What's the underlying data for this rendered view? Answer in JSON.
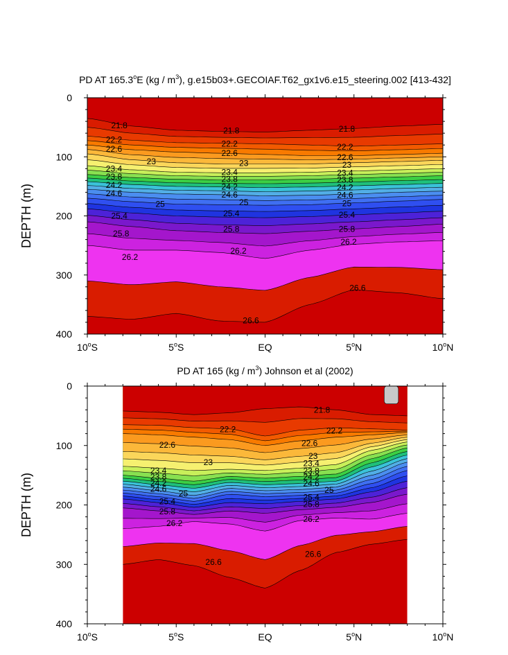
{
  "colors": {
    "levels_palette": [
      "#cc0000",
      "#d91c00",
      "#e83a00",
      "#f25a00",
      "#f87a00",
      "#fb9a1f",
      "#fbb83a",
      "#fbd65a",
      "#f6f070",
      "#c8ef5a",
      "#88e050",
      "#3ccf44",
      "#1fc07a",
      "#22c8b4",
      "#3ac2d8",
      "#52aee6",
      "#4b8ef0",
      "#3f6ff2",
      "#2f4ff0",
      "#1f34e0",
      "#4d22d8",
      "#7a18cc",
      "#a416cc",
      "#cc22e0",
      "#ee33f0",
      "#ff5cff"
    ],
    "missing": "#c8c8c8",
    "contour_line": "#000000"
  },
  "chart_data": [
    {
      "type": "contour",
      "title_parts": [
        "PD AT 165.3",
        "o",
        "E (kg / m",
        "3",
        "), g.e15b03+.GECOIAF.T62_gx1v6.e15_steering.002 [413-432]"
      ],
      "ylabel": "DEPTH (m)",
      "xlabel": "",
      "xlim": [
        -10,
        10
      ],
      "ylim": [
        0,
        400
      ],
      "y_inverted": true,
      "x_ticks": [
        {
          "value": -10,
          "num": "10",
          "sup": "o",
          "hem": "S"
        },
        {
          "value": -5,
          "num": "5",
          "sup": "o",
          "hem": "S"
        },
        {
          "value": 0,
          "num": "EQ",
          "sup": "",
          "hem": ""
        },
        {
          "value": 5,
          "num": "5",
          "sup": "o",
          "hem": "N"
        },
        {
          "value": 10,
          "num": "10",
          "sup": "o",
          "hem": "N"
        }
      ],
      "y_ticks": [
        0,
        100,
        200,
        300,
        400
      ],
      "data_extent": [
        -10,
        10
      ],
      "contour_interval": 0.2,
      "labeled_levels": [
        21.8,
        22.2,
        22.6,
        23,
        23.4,
        23.8,
        24.2,
        24.6,
        25,
        25.4,
        25.8,
        26.2,
        26.6
      ],
      "level_depth_profile": {
        "x": [
          -10,
          -7.5,
          -5,
          -2.5,
          0,
          2.5,
          5,
          7.5,
          10
        ],
        "levels": [
          {
            "level": 21.8,
            "depths": [
              35,
              48,
              55,
              57,
              58,
              55,
              52,
              48,
              45
            ]
          },
          {
            "level": 22.2,
            "depths": [
              65,
              72,
              76,
              77,
              78,
              80,
              82,
              80,
              78
            ]
          },
          {
            "level": 22.6,
            "depths": [
              80,
              88,
              92,
              94,
              96,
              98,
              98,
              96,
              94
            ]
          },
          {
            "level": 23,
            "depths": [
              95,
              105,
              110,
              112,
              112,
              112,
              110,
              108,
              106
            ]
          },
          {
            "level": 23.4,
            "depths": [
              115,
              122,
              126,
              127,
              127,
              126,
              124,
              122,
              120
            ]
          },
          {
            "level": 23.8,
            "depths": [
              130,
              135,
              138,
              139,
              139,
              138,
              136,
              134,
              132
            ]
          },
          {
            "level": 24.2,
            "depths": [
              142,
              147,
              150,
              151,
              152,
              151,
              149,
              147,
              145
            ]
          },
          {
            "level": 24.6,
            "depths": [
              155,
              160,
              163,
              164,
              166,
              165,
              163,
              160,
              158
            ]
          },
          {
            "level": 25,
            "depths": [
              170,
              176,
              180,
              181,
              182,
              181,
              178,
              175,
              172
            ]
          },
          {
            "level": 25.4,
            "depths": [
              188,
              195,
              200,
              202,
              203,
              201,
              198,
              195,
              192
            ]
          },
          {
            "level": 25.8,
            "depths": [
              210,
              218,
              225,
              228,
              230,
              226,
              222,
              218,
              214
            ]
          },
          {
            "level": 26.2,
            "depths": [
              250,
              258,
              258,
              262,
              272,
              258,
              248,
              244,
              242
            ]
          },
          {
            "level": 26.6,
            "depths": [
              370,
              375,
              365,
              378,
              380,
              350,
              325,
              330,
              340
            ]
          }
        ]
      },
      "line_labels": [
        {
          "text": "21.8",
          "x": -8.2,
          "y": 47
        },
        {
          "text": "22.2",
          "x": -8.5,
          "y": 71
        },
        {
          "text": "22.6",
          "x": -8.5,
          "y": 87
        },
        {
          "text": "23",
          "x": -6.4,
          "y": 108
        },
        {
          "text": "23.4",
          "x": -8.5,
          "y": 120
        },
        {
          "text": "23.8",
          "x": -8.5,
          "y": 134
        },
        {
          "text": "24.2",
          "x": -8.5,
          "y": 148
        },
        {
          "text": "24.6",
          "x": -8.5,
          "y": 162
        },
        {
          "text": "25",
          "x": -5.9,
          "y": 180
        },
        {
          "text": "25.4",
          "x": -8.2,
          "y": 200
        },
        {
          "text": "25.8",
          "x": -8.1,
          "y": 230
        },
        {
          "text": "26.2",
          "x": -7.6,
          "y": 270
        },
        {
          "text": "21.8",
          "x": -1.9,
          "y": 56
        },
        {
          "text": "22.2",
          "x": -2.0,
          "y": 78
        },
        {
          "text": "22.6",
          "x": -2.0,
          "y": 94
        },
        {
          "text": "23",
          "x": -1.2,
          "y": 111
        },
        {
          "text": "23.4",
          "x": -2.0,
          "y": 126
        },
        {
          "text": "23.8",
          "x": -2.0,
          "y": 138
        },
        {
          "text": "24.2",
          "x": -2.0,
          "y": 151
        },
        {
          "text": "24.6",
          "x": -2.0,
          "y": 164
        },
        {
          "text": "25",
          "x": -1.2,
          "y": 177
        },
        {
          "text": "25.4",
          "x": -1.9,
          "y": 196
        },
        {
          "text": "25.8",
          "x": -1.9,
          "y": 222
        },
        {
          "text": "26.2",
          "x": -1.5,
          "y": 259
        },
        {
          "text": "26.6",
          "x": -0.8,
          "y": 377
        },
        {
          "text": "21.8",
          "x": 4.6,
          "y": 53
        },
        {
          "text": "22.2",
          "x": 4.5,
          "y": 83
        },
        {
          "text": "22.6",
          "x": 4.5,
          "y": 101
        },
        {
          "text": "23",
          "x": 4.6,
          "y": 114
        },
        {
          "text": "23.4",
          "x": 4.5,
          "y": 127
        },
        {
          "text": "23.8",
          "x": 4.5,
          "y": 139
        },
        {
          "text": "24.2",
          "x": 4.5,
          "y": 152
        },
        {
          "text": "24.6",
          "x": 4.5,
          "y": 165
        },
        {
          "text": "25",
          "x": 4.6,
          "y": 179
        },
        {
          "text": "25.4",
          "x": 4.6,
          "y": 198
        },
        {
          "text": "25.8",
          "x": 4.6,
          "y": 222
        },
        {
          "text": "26.2",
          "x": 4.7,
          "y": 244
        },
        {
          "text": "26.6",
          "x": 5.2,
          "y": 322
        }
      ]
    },
    {
      "type": "contour",
      "title_parts": [
        "PD AT 165 (kg / m",
        "3",
        ") Johnson et al (2002)"
      ],
      "ylabel": "DEPTH (m)",
      "xlabel": "",
      "xlim": [
        -10,
        10
      ],
      "ylim": [
        0,
        400
      ],
      "y_inverted": true,
      "x_ticks": [
        {
          "value": -10,
          "num": "10",
          "sup": "o",
          "hem": "S"
        },
        {
          "value": -5,
          "num": "5",
          "sup": "o",
          "hem": "S"
        },
        {
          "value": 0,
          "num": "EQ",
          "sup": "",
          "hem": ""
        },
        {
          "value": 5,
          "num": "5",
          "sup": "o",
          "hem": "N"
        },
        {
          "value": 10,
          "num": "10",
          "sup": "o",
          "hem": "N"
        }
      ],
      "y_ticks": [
        0,
        100,
        200,
        300,
        400
      ],
      "data_extent": [
        -8,
        8
      ],
      "contour_interval": 0.2,
      "labeled_levels": [
        21.8,
        22.2,
        22.6,
        23,
        23.4,
        23.8,
        24.2,
        24.6,
        25,
        25.4,
        25.8,
        26.2,
        26.6
      ],
      "level_depth_profile": {
        "x": [
          -8,
          -6,
          -4,
          -2,
          0,
          2,
          4,
          6,
          8
        ],
        "levels": [
          {
            "level": 21.8,
            "depths": [
              42,
              44,
              48,
              45,
              38,
              35,
              40,
              48,
              50
            ]
          },
          {
            "level": 22.2,
            "depths": [
              65,
              66,
              70,
              72,
              84,
              74,
              70,
              72,
              74
            ]
          },
          {
            "level": 22.6,
            "depths": [
              80,
              82,
              86,
              90,
              100,
              92,
              86,
              82,
              78
            ]
          },
          {
            "level": 23,
            "depths": [
              110,
              112,
              116,
              118,
              124,
              118,
              112,
              96,
              86
            ]
          },
          {
            "level": 23.4,
            "depths": [
              135,
              138,
              142,
              140,
              142,
              138,
              132,
              108,
              94
            ]
          },
          {
            "level": 23.8,
            "depths": [
              150,
              155,
              160,
              152,
              155,
              152,
              148,
              122,
              104
            ]
          },
          {
            "level": 24.2,
            "depths": [
              160,
              166,
              172,
              162,
              166,
              164,
              160,
              136,
              116
            ]
          },
          {
            "level": 24.6,
            "depths": [
              170,
              176,
              184,
              172,
              176,
              174,
              170,
              150,
              128
            ]
          },
          {
            "level": 25,
            "depths": [
              180,
              186,
              194,
              182,
              186,
              184,
              180,
              164,
              142
            ]
          },
          {
            "level": 25.4,
            "depths": [
              190,
              196,
              204,
              196,
              198,
              194,
              190,
              178,
              160
            ]
          },
          {
            "level": 25.8,
            "depths": [
              205,
              210,
              216,
              210,
              214,
              208,
              204,
              196,
              182
            ]
          },
          {
            "level": 26.2,
            "depths": [
              240,
              236,
              228,
              232,
              244,
              226,
              222,
              224,
              214
            ]
          },
          {
            "level": 26.6,
            "depths": [
              300,
              292,
              302,
              322,
              340,
              310,
              280,
              266,
              258
            ]
          }
        ]
      },
      "missing_patch": {
        "x": [
          6.7,
          7.5
        ],
        "y": [
          0,
          30
        ]
      },
      "line_labels": [
        {
          "text": "21.8",
          "x": 3.2,
          "y": 40
        },
        {
          "text": "22.2",
          "x": -2.1,
          "y": 73
        },
        {
          "text": "22.2",
          "x": 3.9,
          "y": 75
        },
        {
          "text": "22.6",
          "x": -5.5,
          "y": 99
        },
        {
          "text": "22.6",
          "x": 2.5,
          "y": 96
        },
        {
          "text": "23",
          "x": -3.2,
          "y": 128
        },
        {
          "text": "23.4",
          "x": -6.0,
          "y": 142
        },
        {
          "text": "23.8",
          "x": -6.0,
          "y": 153
        },
        {
          "text": "24.2",
          "x": -6.0,
          "y": 163
        },
        {
          "text": "24.6",
          "x": -6.0,
          "y": 173
        },
        {
          "text": "25",
          "x": -4.6,
          "y": 181
        },
        {
          "text": "25.4",
          "x": -5.5,
          "y": 194
        },
        {
          "text": "25.8",
          "x": -5.5,
          "y": 211
        },
        {
          "text": "26.2",
          "x": -5.1,
          "y": 231
        },
        {
          "text": "26.6",
          "x": -2.9,
          "y": 296
        },
        {
          "text": "23",
          "x": 2.7,
          "y": 118
        },
        {
          "text": "23.4",
          "x": 2.6,
          "y": 130
        },
        {
          "text": "23.8",
          "x": 2.6,
          "y": 143
        },
        {
          "text": "24.2",
          "x": 2.6,
          "y": 153
        },
        {
          "text": "24.6",
          "x": 2.6,
          "y": 164
        },
        {
          "text": "25",
          "x": 3.6,
          "y": 175
        },
        {
          "text": "25.4",
          "x": 2.6,
          "y": 187
        },
        {
          "text": "25.8",
          "x": 2.6,
          "y": 199
        },
        {
          "text": "26.2",
          "x": 2.6,
          "y": 224
        },
        {
          "text": "26.6",
          "x": 2.7,
          "y": 283
        }
      ]
    }
  ]
}
